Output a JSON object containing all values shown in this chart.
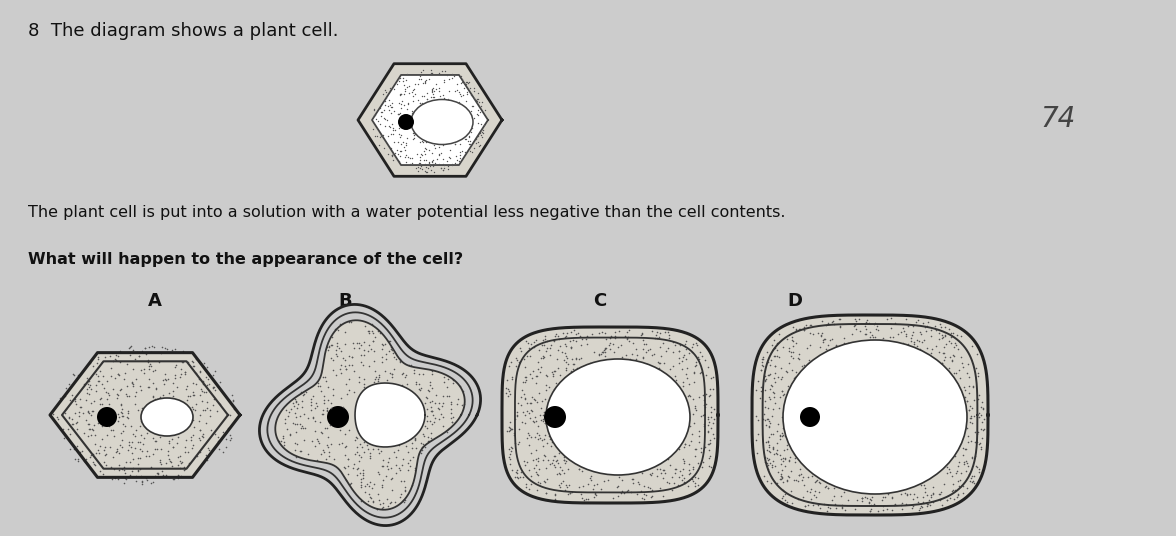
{
  "bg_color": "#cccccc",
  "title_text": "8  The diagram shows a plant cell.",
  "subtitle_text": "The plant cell is put into a solution with a water potential less negative than the cell contents.",
  "question_text": "What will happen to the appearance of the cell?",
  "handwritten": "74",
  "labels": [
    "A",
    "B",
    "C",
    "D"
  ],
  "stipple_color": "#555555",
  "wall_color": "#222222",
  "cyto_fill": "#d8d5cc",
  "vacuole_fill": "#ffffff",
  "text_color": "#111111",
  "title_fontsize": 13,
  "label_fontsize": 13
}
